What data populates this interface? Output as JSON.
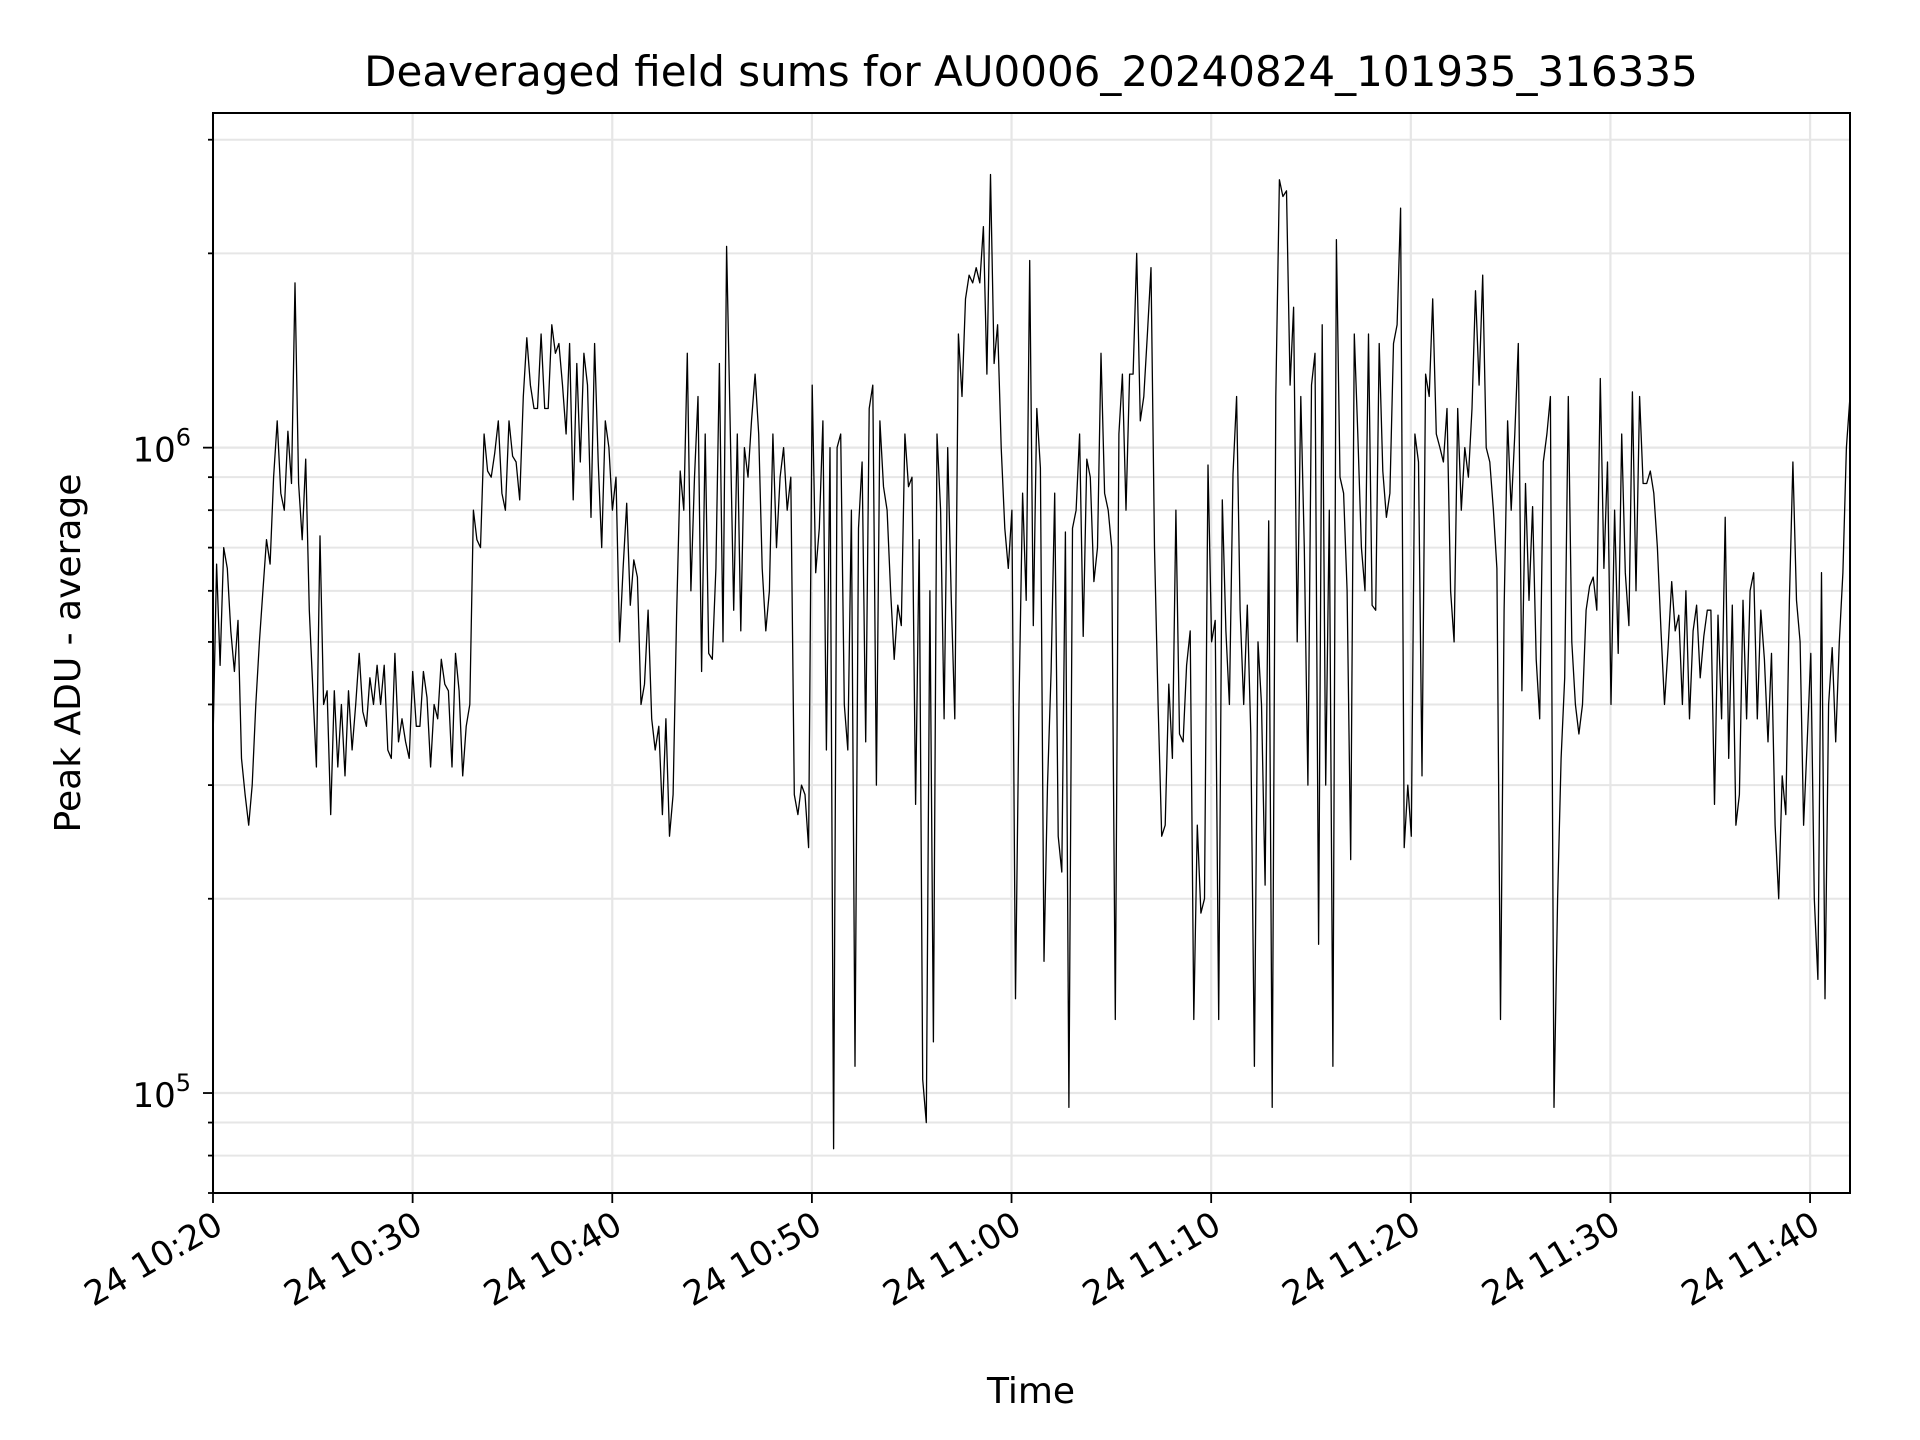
{
  "chart_data": {
    "type": "line",
    "title": "Deaveraged field sums for AU0006_20240824_101935_316335",
    "xlabel": "Time",
    "ylabel": "Peak ADU - average",
    "y_scale": "log",
    "grid": true,
    "line_color": "#000000",
    "x_start": "24 10:20",
    "x_end": "24 11:42",
    "xlim_minutes_label": [
      "24 10:20",
      "24 11:42"
    ],
    "ylim": [
      70000,
      3300000
    ],
    "x_ticks": [
      {
        "value": "24 10:20",
        "label": "24 10:20"
      },
      {
        "value": "24 10:30",
        "label": "24 10:30"
      },
      {
        "value": "24 10:40",
        "label": "24 10:40"
      },
      {
        "value": "24 10:50",
        "label": "24 10:50"
      },
      {
        "value": "24 11:00",
        "label": "24 11:00"
      },
      {
        "value": "24 11:10",
        "label": "24 11:10"
      },
      {
        "value": "24 11:20",
        "label": "24 11:20"
      },
      {
        "value": "24 11:30",
        "label": "24 11:30"
      },
      {
        "value": "24 11:40",
        "label": "24 11:40"
      }
    ],
    "y_ticks": [
      {
        "value": 100000,
        "base": "10",
        "exp": "5"
      },
      {
        "value": 1000000,
        "base": "10",
        "exp": "6"
      }
    ],
    "series": [
      {
        "x_start": "24 10:20:00",
        "x_end": "24 11:42:00",
        "values": [
          350000,
          660000,
          460000,
          700000,
          650000,
          520000,
          450000,
          540000,
          330000,
          290000,
          260000,
          300000,
          400000,
          500000,
          600000,
          720000,
          660000,
          900000,
          1100000,
          850000,
          800000,
          1060000,
          880000,
          1800000,
          880000,
          720000,
          960000,
          560000,
          420000,
          320000,
          730000,
          400000,
          420000,
          270000,
          420000,
          320000,
          400000,
          310000,
          420000,
          340000,
          400000,
          480000,
          390000,
          370000,
          440000,
          400000,
          460000,
          400000,
          460000,
          340000,
          330000,
          480000,
          350000,
          380000,
          350000,
          330000,
          450000,
          370000,
          370000,
          450000,
          410000,
          320000,
          400000,
          380000,
          470000,
          430000,
          420000,
          320000,
          480000,
          420000,
          310000,
          370000,
          400000,
          800000,
          720000,
          700000,
          1050000,
          920000,
          900000,
          980000,
          1100000,
          850000,
          800000,
          1100000,
          970000,
          950000,
          830000,
          1200000,
          1480000,
          1250000,
          1150000,
          1150000,
          1500000,
          1150000,
          1150000,
          1550000,
          1400000,
          1450000,
          1250000,
          1050000,
          1450000,
          830000,
          1350000,
          950000,
          1400000,
          1250000,
          780000,
          1450000,
          950000,
          700000,
          1100000,
          1000000,
          800000,
          900000,
          500000,
          650000,
          820000,
          570000,
          670000,
          630000,
          400000,
          430000,
          560000,
          380000,
          340000,
          370000,
          270000,
          380000,
          250000,
          290000,
          550000,
          920000,
          800000,
          1400000,
          600000,
          900000,
          1200000,
          450000,
          1050000,
          480000,
          470000,
          650000,
          1350000,
          500000,
          2050000,
          1100000,
          560000,
          1050000,
          520000,
          1000000,
          900000,
          1100000,
          1300000,
          1050000,
          650000,
          520000,
          600000,
          1050000,
          700000,
          900000,
          1000000,
          800000,
          900000,
          290000,
          270000,
          300000,
          290000,
          240000,
          1250000,
          640000,
          750000,
          1100000,
          340000,
          1000000,
          82000,
          1000000,
          1050000,
          400000,
          340000,
          800000,
          110000,
          750000,
          950000,
          350000,
          1150000,
          1250000,
          300000,
          1100000,
          870000,
          800000,
          600000,
          470000,
          570000,
          530000,
          1050000,
          870000,
          900000,
          280000,
          720000,
          105000,
          90000,
          600000,
          120000,
          1050000,
          800000,
          380000,
          1000000,
          580000,
          380000,
          1500000,
          1200000,
          1700000,
          1850000,
          1800000,
          1900000,
          1800000,
          2200000,
          1300000,
          2650000,
          1350000,
          1550000,
          1000000,
          750000,
          650000,
          800000,
          140000,
          400000,
          850000,
          580000,
          1950000,
          530000,
          1150000,
          930000,
          160000,
          300000,
          450000,
          850000,
          250000,
          220000,
          740000,
          95000,
          750000,
          800000,
          1050000,
          510000,
          960000,
          900000,
          620000,
          700000,
          1400000,
          850000,
          800000,
          700000,
          130000,
          1050000,
          1300000,
          800000,
          1300000,
          1300000,
          2000000,
          1100000,
          1200000,
          1500000,
          1900000,
          700000,
          400000,
          250000,
          260000,
          430000,
          330000,
          800000,
          360000,
          350000,
          460000,
          520000,
          130000,
          260000,
          190000,
          200000,
          940000,
          500000,
          540000,
          130000,
          830000,
          520000,
          400000,
          910000,
          1200000,
          560000,
          400000,
          570000,
          360000,
          110000,
          500000,
          400000,
          210000,
          770000,
          95000,
          1200000,
          2600000,
          2450000,
          2500000,
          1250000,
          1650000,
          500000,
          1200000,
          700000,
          300000,
          1250000,
          1400000,
          170000,
          1550000,
          300000,
          800000,
          110000,
          2100000,
          900000,
          850000,
          600000,
          230000,
          1500000,
          1050000,
          700000,
          600000,
          1500000,
          570000,
          560000,
          1450000,
          920000,
          780000,
          850000,
          1450000,
          1550000,
          2350000,
          240000,
          300000,
          250000,
          1050000,
          950000,
          310000,
          1300000,
          1200000,
          1700000,
          1050000,
          1000000,
          950000,
          1150000,
          600000,
          500000,
          1150000,
          800000,
          1000000,
          900000,
          1150000,
          1750000,
          1250000,
          1850000,
          1000000,
          950000,
          800000,
          650000,
          130000,
          560000,
          1100000,
          800000,
          1050000,
          1450000,
          420000,
          880000,
          580000,
          810000,
          470000,
          380000,
          950000,
          1050000,
          1200000,
          95000,
          200000,
          330000,
          440000,
          1200000,
          500000,
          400000,
          360000,
          400000,
          560000,
          610000,
          630000,
          560000,
          1280000,
          650000,
          950000,
          400000,
          800000,
          480000,
          1050000,
          640000,
          530000,
          1220000,
          600000,
          1200000,
          880000,
          880000,
          920000,
          850000,
          700000,
          520000,
          400000,
          490000,
          620000,
          520000,
          550000,
          400000,
          600000,
          380000,
          520000,
          570000,
          440000,
          510000,
          560000,
          560000,
          280000,
          550000,
          380000,
          780000,
          330000,
          570000,
          260000,
          290000,
          580000,
          380000,
          600000,
          640000,
          380000,
          560000,
          470000,
          350000,
          480000,
          260000,
          200000,
          310000,
          270000,
          580000,
          950000,
          580000,
          500000,
          260000,
          350000,
          480000,
          200000,
          150000,
          640000,
          140000,
          400000,
          490000,
          350000,
          500000,
          640000,
          1000000,
          1200000
        ]
      }
    ]
  }
}
